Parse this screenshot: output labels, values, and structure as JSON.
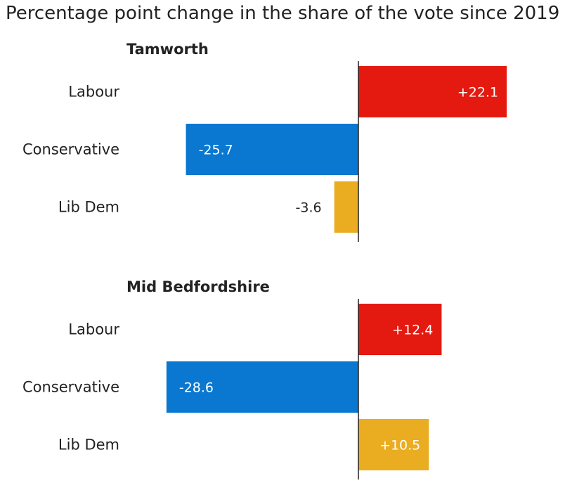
{
  "chart_data": {
    "type": "bar",
    "orientation": "horizontal",
    "title": "Percentage point change in the share of the vote since 2019",
    "categories": [
      "Labour",
      "Conservative",
      "Lib Dem"
    ],
    "colors": {
      "Labour": "#e4190f",
      "Conservative": "#0a77d0",
      "Lib Dem": "#eaad22"
    },
    "xlim": [
      -30,
      30
    ],
    "grid": false,
    "legend": "none",
    "panels": [
      {
        "name": "Tamworth",
        "values": [
          22.1,
          -25.7,
          -3.6
        ],
        "labels": [
          "+22.1",
          "-25.7",
          "-3.6"
        ]
      },
      {
        "name": "Mid Bedfordshire",
        "values": [
          12.4,
          -28.6,
          10.5
        ],
        "labels": [
          "+12.4",
          "-28.6",
          "+10.5"
        ]
      }
    ]
  }
}
